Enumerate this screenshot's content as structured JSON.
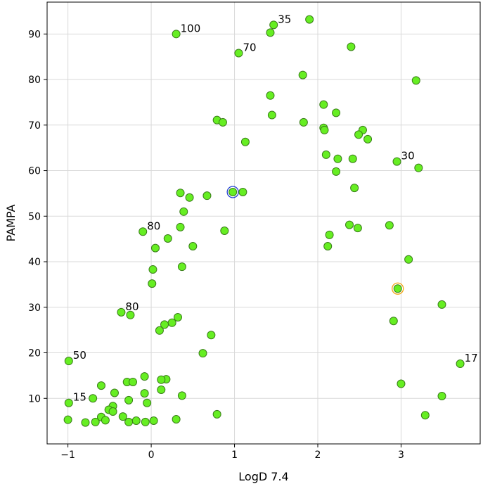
{
  "chart_data": {
    "type": "scatter",
    "xlabel": "LogD 7.4",
    "ylabel": "PAMPA",
    "xlim": [
      -1.25,
      3.95
    ],
    "ylim": [
      0,
      97
    ],
    "xticks": [
      -1,
      0,
      1,
      2,
      3
    ],
    "xtick_labels": [
      "−1",
      "0",
      "1",
      "2",
      "3"
    ],
    "yticks": [
      10,
      20,
      30,
      40,
      50,
      60,
      70,
      80,
      90
    ],
    "ytick_labels": [
      "10",
      "20",
      "30",
      "40",
      "50",
      "60",
      "70",
      "80",
      "90"
    ],
    "grid": true,
    "point_color": "#66ee22",
    "highlight_colors": {
      "blue": "#1f3fd1",
      "orange": "#f2a516"
    },
    "points": [
      {
        "x": 0.3,
        "y": 90.0,
        "label": "100"
      },
      {
        "x": 1.47,
        "y": 92.0,
        "label": "35"
      },
      {
        "x": 1.43,
        "y": 90.3
      },
      {
        "x": 1.9,
        "y": 93.2
      },
      {
        "x": 1.05,
        "y": 85.8,
        "label": "70"
      },
      {
        "x": 2.4,
        "y": 87.2
      },
      {
        "x": 1.82,
        "y": 81.0
      },
      {
        "x": 3.18,
        "y": 79.8
      },
      {
        "x": 1.43,
        "y": 76.5
      },
      {
        "x": 2.07,
        "y": 74.5
      },
      {
        "x": 2.22,
        "y": 72.7
      },
      {
        "x": 1.45,
        "y": 72.2
      },
      {
        "x": 0.79,
        "y": 71.1
      },
      {
        "x": 0.86,
        "y": 70.6
      },
      {
        "x": 1.83,
        "y": 70.6
      },
      {
        "x": 2.07,
        "y": 69.4
      },
      {
        "x": 2.08,
        "y": 68.9
      },
      {
        "x": 2.54,
        "y": 68.9
      },
      {
        "x": 2.49,
        "y": 67.9
      },
      {
        "x": 2.6,
        "y": 66.9
      },
      {
        "x": 1.13,
        "y": 66.3
      },
      {
        "x": 2.1,
        "y": 63.5
      },
      {
        "x": 2.24,
        "y": 62.6
      },
      {
        "x": 2.42,
        "y": 62.6
      },
      {
        "x": 2.95,
        "y": 62.0,
        "label": "30"
      },
      {
        "x": 3.21,
        "y": 60.6
      },
      {
        "x": 2.22,
        "y": 59.8
      },
      {
        "x": 2.44,
        "y": 56.2
      },
      {
        "x": 0.98,
        "y": 55.3,
        "highlight": "blue"
      },
      {
        "x": 1.1,
        "y": 55.3
      },
      {
        "x": 0.35,
        "y": 55.1
      },
      {
        "x": 0.67,
        "y": 54.5
      },
      {
        "x": 0.46,
        "y": 54.1
      },
      {
        "x": 0.39,
        "y": 51.0
      },
      {
        "x": 2.38,
        "y": 48.1
      },
      {
        "x": 2.86,
        "y": 48.0
      },
      {
        "x": 0.35,
        "y": 47.6
      },
      {
        "x": 2.48,
        "y": 47.4
      },
      {
        "x": 0.88,
        "y": 46.8
      },
      {
        "x": -0.1,
        "y": 46.6,
        "label": "80"
      },
      {
        "x": 2.14,
        "y": 45.9
      },
      {
        "x": 0.2,
        "y": 45.1
      },
      {
        "x": 2.12,
        "y": 43.4
      },
      {
        "x": 0.5,
        "y": 43.4
      },
      {
        "x": 0.05,
        "y": 43.0
      },
      {
        "x": 3.09,
        "y": 40.5
      },
      {
        "x": 0.37,
        "y": 38.9
      },
      {
        "x": 0.02,
        "y": 38.3
      },
      {
        "x": 0.01,
        "y": 35.2
      },
      {
        "x": 2.96,
        "y": 34.1,
        "highlight": "orange"
      },
      {
        "x": 3.49,
        "y": 30.6
      },
      {
        "x": -0.36,
        "y": 28.9,
        "label": "80"
      },
      {
        "x": -0.25,
        "y": 28.3
      },
      {
        "x": 0.32,
        "y": 27.8
      },
      {
        "x": 2.91,
        "y": 27.0
      },
      {
        "x": 0.25,
        "y": 26.6
      },
      {
        "x": 0.16,
        "y": 26.2
      },
      {
        "x": 0.1,
        "y": 24.9
      },
      {
        "x": 0.72,
        "y": 23.9
      },
      {
        "x": 0.62,
        "y": 19.9
      },
      {
        "x": -0.99,
        "y": 18.2,
        "label": "50"
      },
      {
        "x": 3.71,
        "y": 17.6,
        "label": "17"
      },
      {
        "x": -0.08,
        "y": 14.8
      },
      {
        "x": 0.18,
        "y": 14.2
      },
      {
        "x": 0.12,
        "y": 14.1
      },
      {
        "x": -0.29,
        "y": 13.6
      },
      {
        "x": -0.22,
        "y": 13.6
      },
      {
        "x": 3.0,
        "y": 13.2
      },
      {
        "x": -0.6,
        "y": 12.8
      },
      {
        "x": 0.12,
        "y": 11.9
      },
      {
        "x": -0.08,
        "y": 11.1
      },
      {
        "x": -0.44,
        "y": 11.2
      },
      {
        "x": 0.37,
        "y": 10.6
      },
      {
        "x": 3.49,
        "y": 10.5
      },
      {
        "x": -0.7,
        "y": 10.0
      },
      {
        "x": -0.27,
        "y": 9.6
      },
      {
        "x": -0.99,
        "y": 9.0,
        "label": "15"
      },
      {
        "x": -0.05,
        "y": 9.0
      },
      {
        "x": -0.46,
        "y": 8.3
      },
      {
        "x": -0.51,
        "y": 7.5
      },
      {
        "x": -0.46,
        "y": 7.1
      },
      {
        "x": 0.79,
        "y": 6.5
      },
      {
        "x": 3.29,
        "y": 6.3
      },
      {
        "x": -0.6,
        "y": 5.9
      },
      {
        "x": -0.34,
        "y": 6.0
      },
      {
        "x": -1.0,
        "y": 5.3
      },
      {
        "x": -0.55,
        "y": 5.2
      },
      {
        "x": 0.3,
        "y": 5.4
      },
      {
        "x": 0.03,
        "y": 5.1
      },
      {
        "x": -0.18,
        "y": 5.1
      },
      {
        "x": -0.27,
        "y": 4.8
      },
      {
        "x": -0.67,
        "y": 4.8
      },
      {
        "x": -0.79,
        "y": 4.7
      },
      {
        "x": -0.07,
        "y": 4.8
      }
    ]
  }
}
